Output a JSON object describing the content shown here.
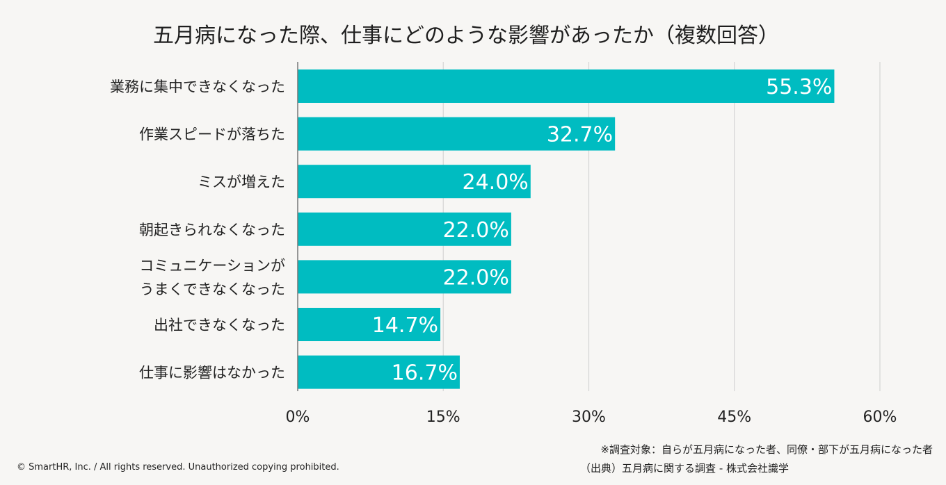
{
  "chart_data": {
    "type": "bar",
    "orientation": "horizontal",
    "title": "五月病になった際、仕事にどのような影響があったか（複数回答）",
    "categories": [
      [
        "業務に集中できなくなった"
      ],
      [
        "作業スピードが落ちた"
      ],
      [
        "ミスが増えた"
      ],
      [
        "朝起きられなくなった"
      ],
      [
        "コミュニケーションが",
        "うまくできなくなった"
      ],
      [
        "出社できなくなった"
      ],
      [
        "仕事に影響はなかった"
      ]
    ],
    "values": [
      55.3,
      32.7,
      24.0,
      22.0,
      22.0,
      14.7,
      16.7
    ],
    "value_labels": [
      "55.3%",
      "32.7%",
      "24.0%",
      "22.0%",
      "22.0%",
      "14.7%",
      "16.7%"
    ],
    "xlim": [
      0,
      60
    ],
    "xticks": [
      0,
      15,
      30,
      45,
      60
    ],
    "xtick_labels": [
      "0%",
      "15%",
      "30%",
      "45%",
      "60%"
    ],
    "grid": true,
    "bar_color": "#00bcc1",
    "grid_color": "#d4d4d4"
  },
  "footer": {
    "note_line1": "※調査対象：自らが五月病になった者、同僚・部下が五月病になった者",
    "note_line2": "（出典）五月病に関する調査 - 株式会社識学",
    "copyright": "© SmartHR, Inc. / All rights reserved. Unauthorized copying prohibited."
  }
}
